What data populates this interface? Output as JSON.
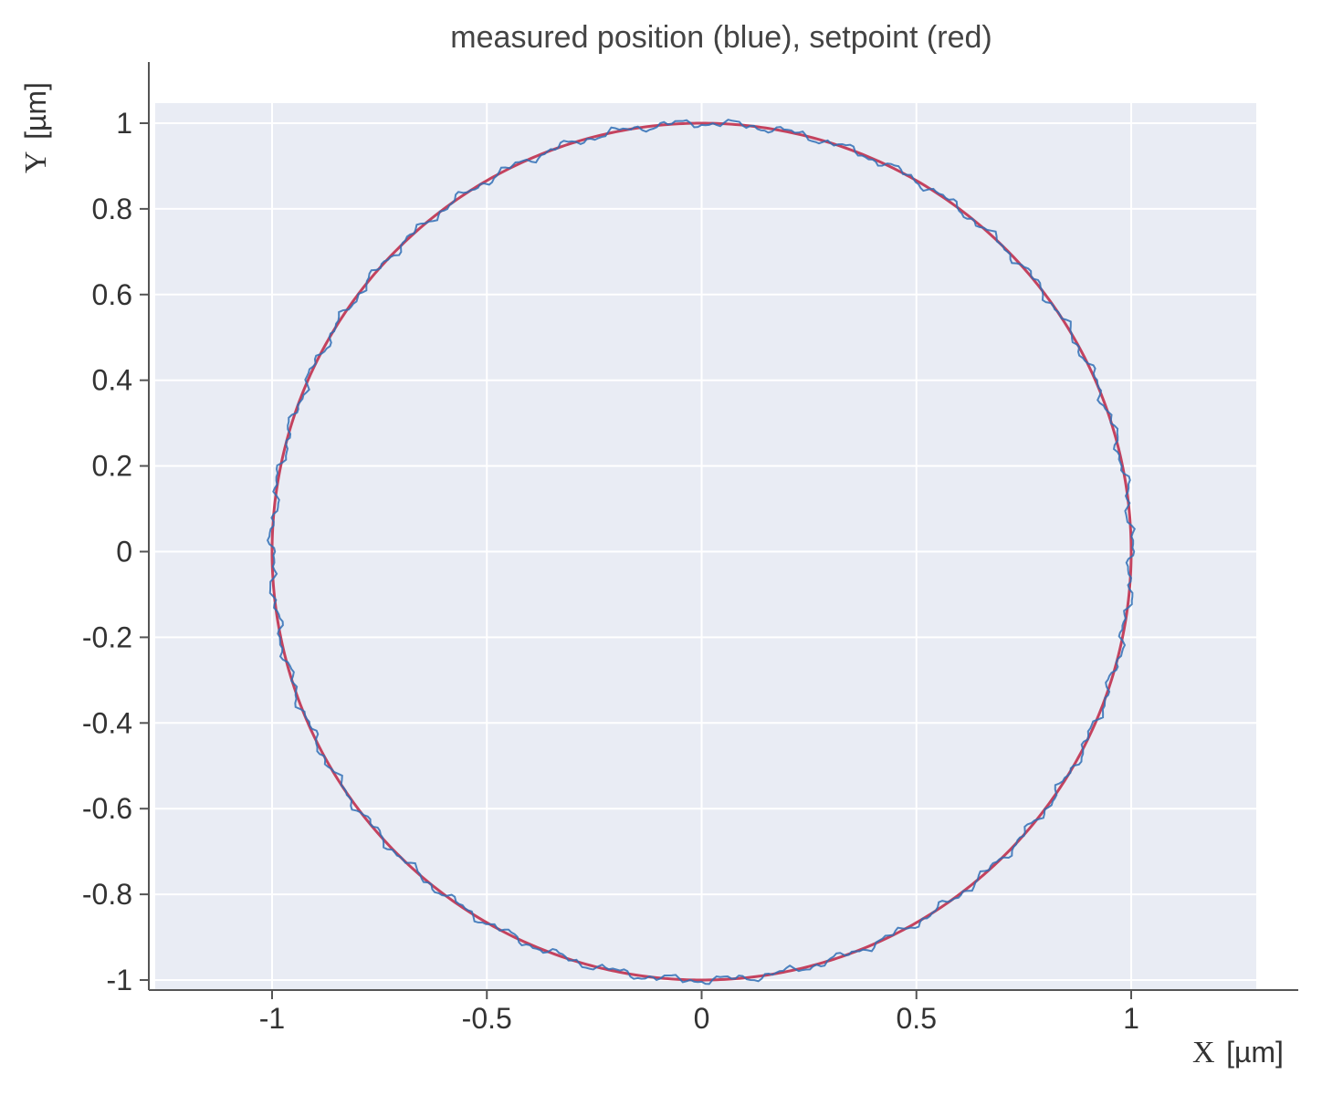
{
  "chart_data": {
    "type": "line",
    "title": "measured position (blue), setpoint (red)",
    "xlabel_symbol": "X",
    "xlabel_unit": "[µm]",
    "ylabel_symbol": "Y",
    "ylabel_unit": "[µm]",
    "xlim": [
      -1.25,
      1.3
    ],
    "ylim": [
      -1.04,
      1.04
    ],
    "x_ticks": [
      -1,
      -0.5,
      0,
      0.5,
      1
    ],
    "x_tick_labels": [
      "-1",
      "-0.5",
      "0",
      "0.5",
      "1"
    ],
    "y_ticks": [
      1,
      0.8,
      0.6,
      0.4,
      0.2,
      0,
      -0.2,
      -0.4,
      -0.6,
      -0.8,
      -1
    ],
    "y_tick_labels": [
      "1",
      "0.8",
      "0.6",
      "0.4",
      "0.2",
      "0",
      "-0.2",
      "-0.4",
      "-0.6",
      "-0.8",
      "-1"
    ],
    "grid": true,
    "series": [
      {
        "color": "#c0304e",
        "shape": "circle",
        "center": [
          0,
          0
        ],
        "radius": 1.0
      },
      {
        "color": "#2f6fb5",
        "shape": "circle",
        "center": [
          0,
          0
        ],
        "radius": 1.0,
        "noise_amplitude": 0.012
      }
    ],
    "colors": {
      "plot_background": "#e9ecf4",
      "grid": "#ffffff",
      "axis": "#555555"
    }
  }
}
